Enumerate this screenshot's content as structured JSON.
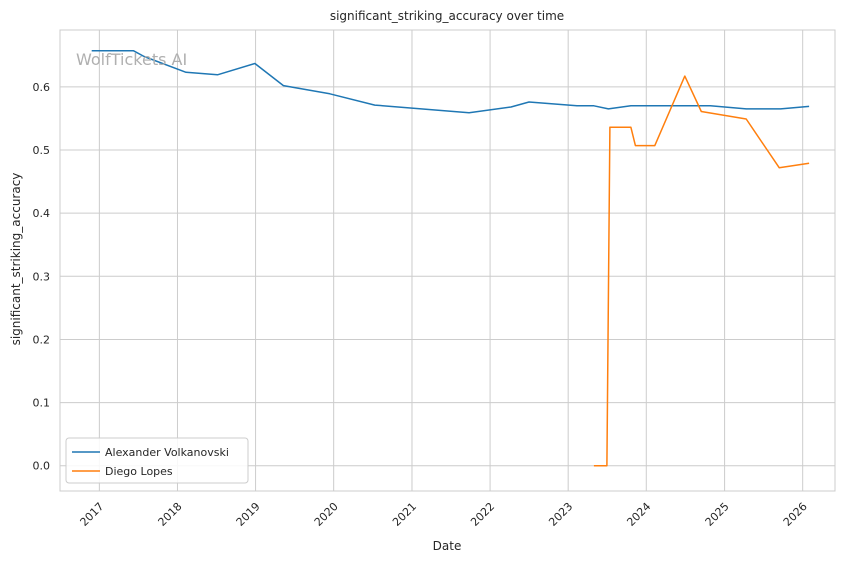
{
  "chart_data": {
    "type": "line",
    "title": "significant_striking_accuracy over time",
    "xlabel": "Date",
    "ylabel": "significant_striking_accuracy",
    "xlim": [
      "2016-07-01",
      "2026-06-01"
    ],
    "ylim": [
      -0.04,
      0.69
    ],
    "x_ticks": [
      "2017",
      "2018",
      "2019",
      "2020",
      "2021",
      "2022",
      "2023",
      "2024",
      "2025",
      "2026"
    ],
    "y_ticks": [
      "0.0",
      "0.1",
      "0.2",
      "0.3",
      "0.4",
      "0.5",
      "0.6"
    ],
    "grid": true,
    "legend_position": "lower-left",
    "watermark": "WolfTickets AI",
    "series": [
      {
        "name": "Alexander Volkanovski",
        "color": "#1f77b4",
        "points": [
          [
            "2016-11-26",
            0.657
          ],
          [
            "2017-06-10",
            0.657
          ],
          [
            "2017-07-29",
            0.648
          ],
          [
            "2018-02-10",
            0.623
          ],
          [
            "2018-07-07",
            0.619
          ],
          [
            "2018-12-29",
            0.637
          ],
          [
            "2019-05-11",
            0.602
          ],
          [
            "2019-12-14",
            0.589
          ],
          [
            "2020-07-11",
            0.571
          ],
          [
            "2021-09-25",
            0.559
          ],
          [
            "2022-04-09",
            0.568
          ],
          [
            "2022-07-02",
            0.576
          ],
          [
            "2023-02-11",
            0.57
          ],
          [
            "2023-05-01",
            0.57
          ],
          [
            "2023-07-08",
            0.565
          ],
          [
            "2023-10-21",
            0.57
          ],
          [
            "2024-02-17",
            0.57
          ],
          [
            "2024-10-26",
            0.57
          ],
          [
            "2025-04-12",
            0.565
          ],
          [
            "2025-09-20",
            0.565
          ],
          [
            "2026-01-31",
            0.569
          ]
        ]
      },
      {
        "name": "Diego Lopes",
        "color": "#ff7f0e",
        "points": [
          [
            "2023-05-01",
            0.0
          ],
          [
            "2023-07-01",
            0.0
          ],
          [
            "2023-07-15",
            0.536
          ],
          [
            "2023-10-21",
            0.536
          ],
          [
            "2023-11-11",
            0.507
          ],
          [
            "2024-02-10",
            0.507
          ],
          [
            "2024-06-29",
            0.617
          ],
          [
            "2024-09-14",
            0.561
          ],
          [
            "2025-04-12",
            0.549
          ],
          [
            "2025-09-13",
            0.472
          ],
          [
            "2026-01-31",
            0.479
          ]
        ]
      }
    ]
  }
}
